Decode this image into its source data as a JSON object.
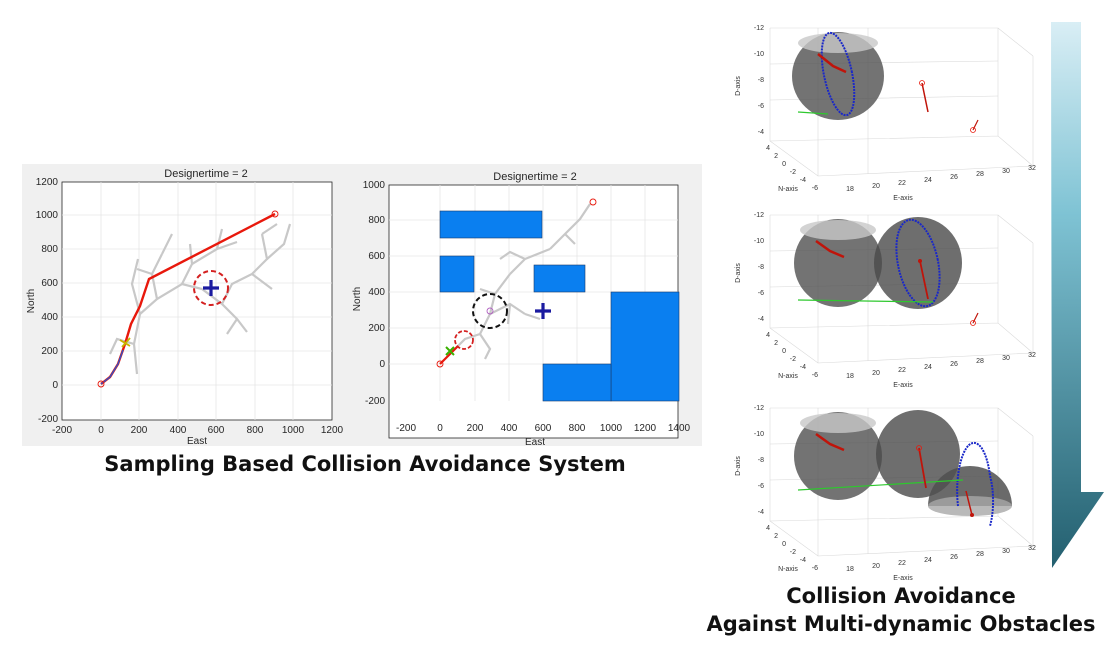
{
  "left_plot": {
    "title": "Designertime = 2",
    "xlabel": "East",
    "ylabel": "North",
    "xticks": [
      "-200",
      "0",
      "200",
      "400",
      "600",
      "800",
      "1000",
      "1200"
    ],
    "yticks": [
      "1200",
      "1000",
      "800",
      "600",
      "400",
      "200",
      "0",
      "-200"
    ]
  },
  "middle_plot": {
    "title": "Designertime = 2",
    "xlabel": "East",
    "ylabel": "North",
    "xticks": [
      "-200",
      "0",
      "200",
      "400",
      "600",
      "800",
      "1000",
      "1200",
      "1400"
    ],
    "yticks": [
      "1000",
      "800",
      "600",
      "400",
      "200",
      "0",
      "-200"
    ]
  },
  "caption_left": "Sampling Based Collision Avoidance System",
  "caption_right_line1": "Collision Avoidance",
  "caption_right_line2": "Against Multi-dynamic Obstacles",
  "plot3d": {
    "zlabel": "D-axis",
    "nlabel": "N-axis",
    "elabel": "E-axis",
    "zticks": [
      "-12",
      "-10",
      "-8",
      "-6",
      "-4"
    ],
    "nticks": [
      "4",
      "2",
      "0",
      "-2",
      "-4",
      "-6"
    ],
    "eticks": [
      "18",
      "20",
      "22",
      "24",
      "26",
      "28",
      "30",
      "32"
    ]
  },
  "colors": {
    "obstacle": "#0a7ff0",
    "path": "#e8180c",
    "tree": "#c8c8c8",
    "arrow_top": "#d9eef5",
    "arrow_bottom": "#235f6f"
  }
}
